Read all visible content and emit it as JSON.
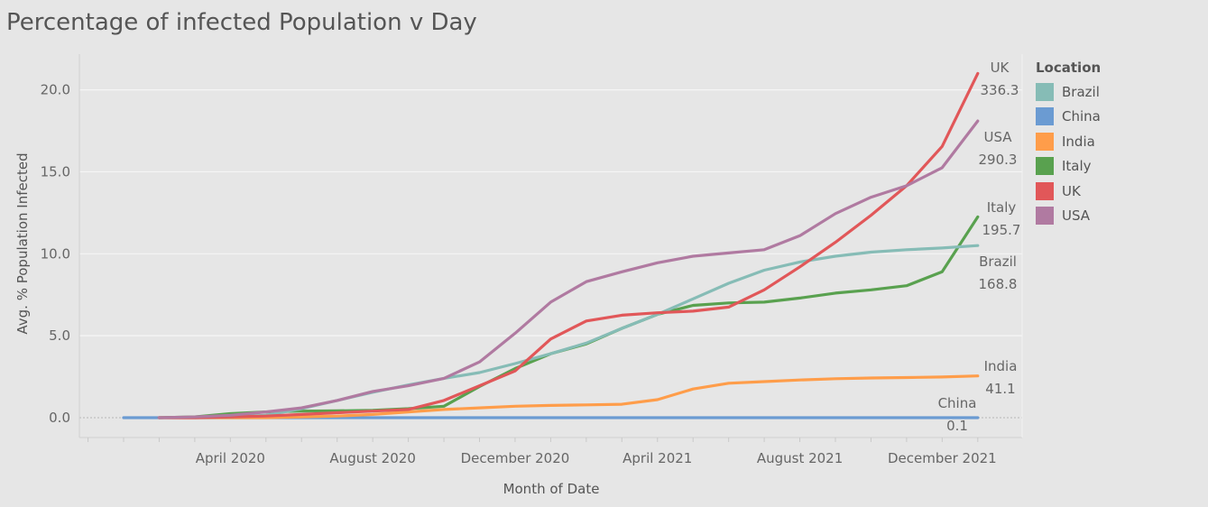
{
  "chart_data": {
    "type": "line",
    "title": "Percentage of infected Population v Day",
    "xlabel": "Month of Date",
    "ylabel": "Avg. % Population Infected",
    "x": [
      "2020-01",
      "2020-02",
      "2020-03",
      "2020-04",
      "2020-05",
      "2020-06",
      "2020-07",
      "2020-08",
      "2020-09",
      "2020-10",
      "2020-11",
      "2020-12",
      "2021-01",
      "2021-02",
      "2021-03",
      "2021-04",
      "2021-05",
      "2021-06",
      "2021-07",
      "2021-08",
      "2021-09",
      "2021-10",
      "2021-11",
      "2021-12",
      "2022-01"
    ],
    "x_ticks": [
      {
        "x": "2020-04",
        "label": "April 2020"
      },
      {
        "x": "2020-08",
        "label": "August 2020"
      },
      {
        "x": "2020-12",
        "label": "December 2020"
      },
      {
        "x": "2021-04",
        "label": "April 2021"
      },
      {
        "x": "2021-08",
        "label": "August 2021"
      },
      {
        "x": "2021-12",
        "label": "December 2021"
      }
    ],
    "y_ticks": [
      {
        "y": 0,
        "label": "0.0"
      },
      {
        "y": 5,
        "label": "5.0"
      },
      {
        "y": 10,
        "label": "10.0"
      },
      {
        "y": 15,
        "label": "15.0"
      },
      {
        "y": 20,
        "label": "20.0"
      }
    ],
    "ylim": [
      -1,
      22
    ],
    "grid": true,
    "legend_title": "Location",
    "legend_position": "right",
    "series": [
      {
        "name": "Brazil",
        "color": "#86bcb6",
        "end_label_value": "168.8",
        "values": [
          null,
          null,
          0.0,
          0.05,
          0.15,
          0.55,
          1.05,
          1.55,
          2.0,
          2.4,
          2.75,
          3.3,
          3.9,
          4.55,
          5.45,
          6.3,
          7.25,
          8.2,
          9.0,
          9.5,
          9.85,
          10.1,
          10.25,
          10.35,
          10.5
        ]
      },
      {
        "name": "China",
        "color": "#6b9bd2",
        "end_label_value": "0.1",
        "values": [
          0.0,
          0.0,
          0.0,
          0.0,
          0.0,
          0.0,
          0.0,
          0.0,
          0.0,
          0.0,
          0.0,
          0.0,
          0.0,
          0.0,
          0.0,
          0.0,
          0.0,
          0.0,
          0.0,
          0.0,
          0.0,
          0.0,
          0.0,
          0.0,
          0.0
        ]
      },
      {
        "name": "India",
        "color": "#ff9d4a",
        "end_label_value": "41.1",
        "values": [
          null,
          0.0,
          0.0,
          0.0,
          0.0,
          0.05,
          0.1,
          0.2,
          0.35,
          0.5,
          0.6,
          0.7,
          0.75,
          0.78,
          0.82,
          1.1,
          1.75,
          2.1,
          2.2,
          2.3,
          2.38,
          2.42,
          2.45,
          2.48,
          2.55
        ]
      },
      {
        "name": "Italy",
        "color": "#59a14f",
        "end_label_value": "195.7",
        "values": [
          null,
          0.0,
          0.05,
          0.25,
          0.35,
          0.4,
          0.42,
          0.45,
          0.55,
          0.7,
          1.9,
          3.0,
          3.9,
          4.5,
          5.45,
          6.3,
          6.85,
          7.0,
          7.05,
          7.3,
          7.6,
          7.8,
          8.05,
          8.9,
          12.25
        ]
      },
      {
        "name": "UK",
        "color": "#e15759",
        "end_label_value": "336.3",
        "values": [
          null,
          0.0,
          0.0,
          0.05,
          0.1,
          0.2,
          0.3,
          0.4,
          0.5,
          1.05,
          1.95,
          2.85,
          4.8,
          5.9,
          6.25,
          6.4,
          6.5,
          6.75,
          7.8,
          9.2,
          10.7,
          12.35,
          14.15,
          16.55,
          21.0
        ]
      },
      {
        "name": "USA",
        "color": "#b07aa1",
        "end_label_value": "290.3",
        "values": [
          null,
          0.0,
          0.05,
          0.15,
          0.35,
          0.6,
          1.05,
          1.6,
          1.95,
          2.4,
          3.4,
          5.15,
          7.05,
          8.3,
          8.9,
          9.45,
          9.85,
          10.05,
          10.25,
          11.1,
          12.45,
          13.45,
          14.15,
          15.25,
          18.1
        ]
      }
    ]
  }
}
